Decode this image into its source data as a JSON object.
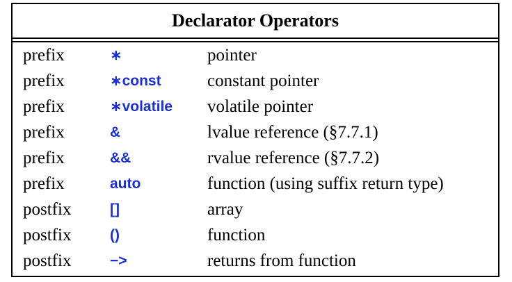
{
  "table": {
    "title": "Declarator Operators",
    "rows": [
      {
        "fix": "prefix",
        "operator": "∗",
        "meaning": "pointer"
      },
      {
        "fix": "prefix",
        "operator": "∗const",
        "meaning": "constant pointer"
      },
      {
        "fix": "prefix",
        "operator": "∗volatile",
        "meaning": "volatile pointer"
      },
      {
        "fix": "prefix",
        "operator": "&",
        "meaning": "lvalue reference (§7.7.1)"
      },
      {
        "fix": "prefix",
        "operator": "&&",
        "meaning": "rvalue reference (§7.7.2)"
      },
      {
        "fix": "prefix",
        "operator": "auto",
        "meaning": "function (using suffix return type)"
      },
      {
        "fix": "postfix",
        "operator": "[]",
        "meaning": "array"
      },
      {
        "fix": "postfix",
        "operator": "()",
        "meaning": "function"
      },
      {
        "fix": "postfix",
        "operator": "−>",
        "meaning": "returns from function"
      }
    ]
  },
  "colors": {
    "operator_text": "#1a2fd6",
    "text": "#000000",
    "border": "#000000"
  }
}
